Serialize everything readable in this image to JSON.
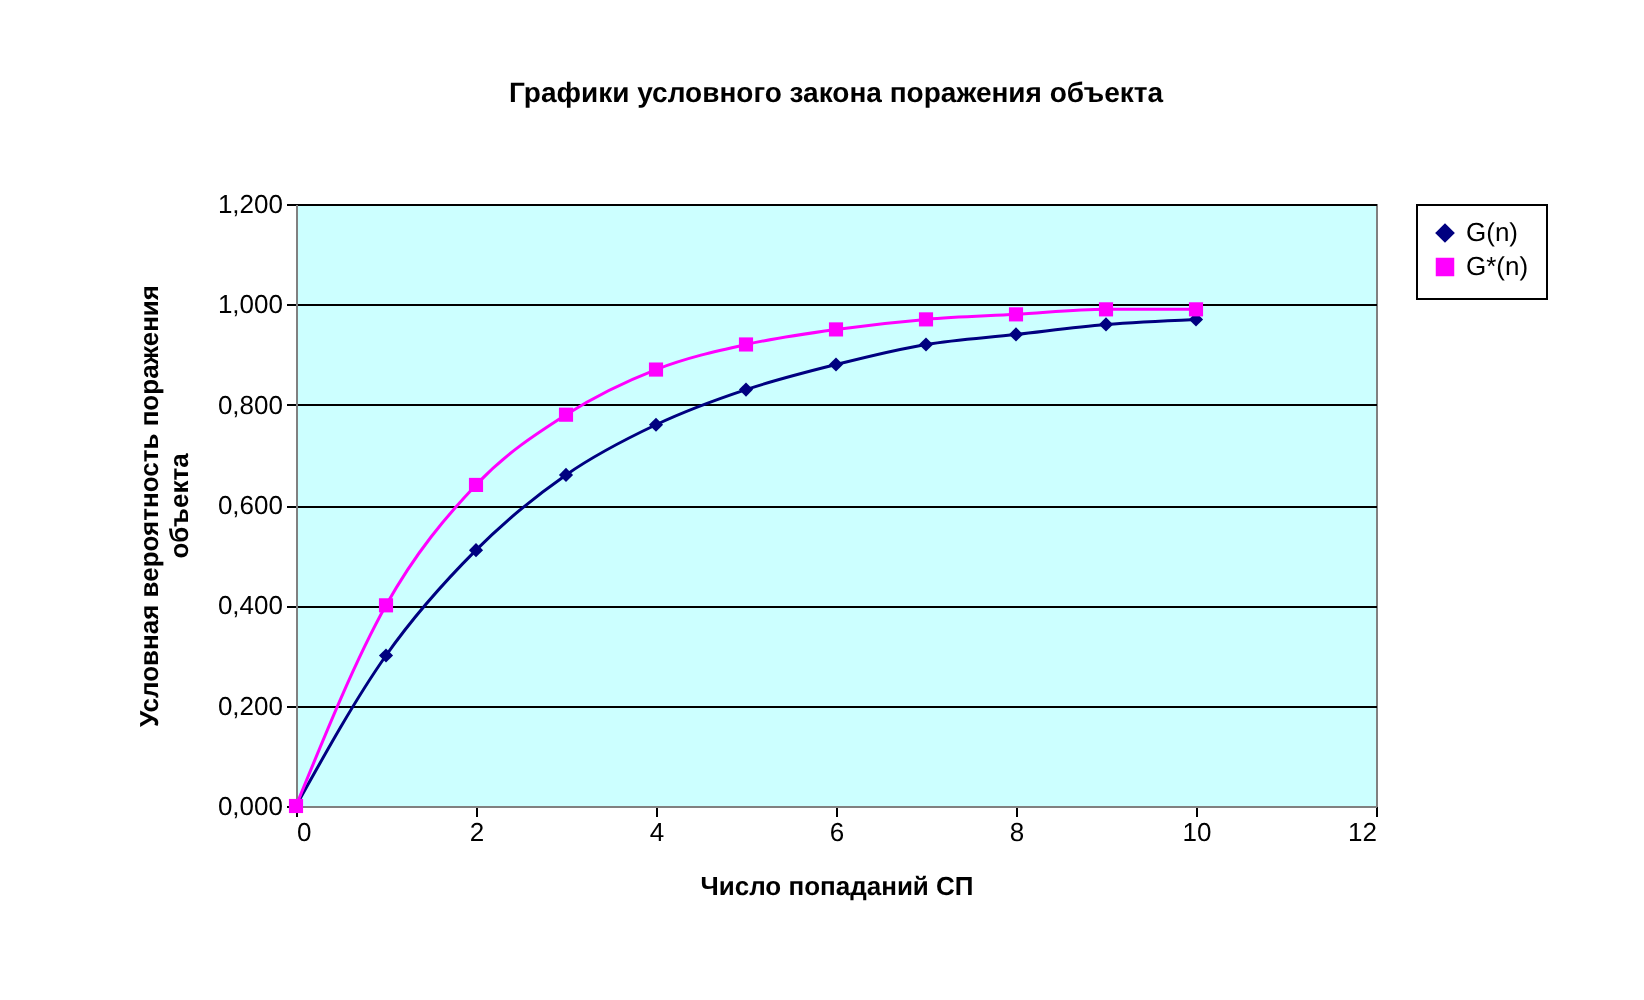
{
  "chart_data": {
    "type": "line",
    "title": "Графики  условного закона поражения объекта",
    "xlabel": "Число попаданий СП",
    "ylabel": "Условная вероятность поражения объекта",
    "x": [
      0,
      1,
      2,
      3,
      4,
      5,
      6,
      7,
      8,
      9,
      10
    ],
    "series": [
      {
        "name": "G(n)",
        "color": "#000080",
        "marker": "diamond",
        "values": [
          0,
          0.3,
          0.51,
          0.66,
          0.76,
          0.83,
          0.88,
          0.92,
          0.94,
          0.96,
          0.97
        ]
      },
      {
        "name": "G*(n)",
        "color": "#ff00ff",
        "marker": "square",
        "values": [
          0,
          0.4,
          0.64,
          0.78,
          0.87,
          0.92,
          0.95,
          0.97,
          0.98,
          0.99,
          0.99
        ]
      }
    ],
    "xlim": [
      0,
      12
    ],
    "xticks": [
      0,
      2,
      4,
      6,
      8,
      10,
      12
    ],
    "ylim": [
      0,
      1.2
    ],
    "yticks": [
      {
        "value": 0,
        "label": "0,000"
      },
      {
        "value": 0.2,
        "label": "0,200"
      },
      {
        "value": 0.4,
        "label": "0,400"
      },
      {
        "value": 0.6,
        "label": "0,600"
      },
      {
        "value": 0.8,
        "label": "0,800"
      },
      {
        "value": 1,
        "label": "1,000"
      },
      {
        "value": 1.2,
        "label": "1,200"
      }
    ],
    "grid": "y",
    "legend": "right",
    "line_style": "solid"
  }
}
